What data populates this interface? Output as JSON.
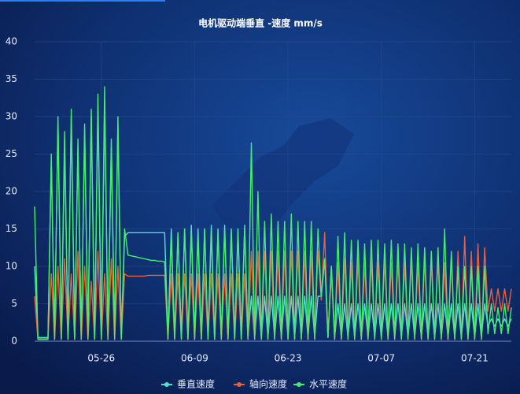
{
  "chart_data": {
    "type": "line",
    "title": "电机驱动端垂直 -速度 mm/s",
    "categories": [
      null,
      null,
      null,
      null,
      null,
      null,
      null,
      null,
      null,
      null,
      null,
      null,
      null,
      null,
      null,
      null,
      null,
      null,
      null,
      null,
      "05-26",
      null,
      null,
      null,
      null,
      null,
      null,
      null,
      null,
      null,
      null,
      null,
      null,
      null,
      null,
      null,
      null,
      null,
      null,
      null,
      null,
      null,
      null,
      null,
      null,
      null,
      null,
      null,
      "06-09",
      null,
      null,
      null,
      null,
      null,
      null,
      null,
      null,
      null,
      null,
      null,
      null,
      null,
      null,
      null,
      null,
      null,
      null,
      null,
      null,
      null,
      null,
      null,
      null,
      null,
      null,
      null,
      "06-23",
      null,
      null,
      null,
      null,
      null,
      null,
      null,
      null,
      null,
      null,
      null,
      null,
      null,
      null,
      null,
      null,
      null,
      null,
      null,
      null,
      null,
      null,
      null,
      null,
      null,
      null,
      null,
      "07-07",
      null,
      null,
      null,
      null,
      null,
      null,
      null,
      null,
      null,
      null,
      null,
      null,
      null,
      null,
      null,
      null,
      null,
      null,
      null,
      null,
      null,
      null,
      null,
      null,
      null,
      null,
      null,
      "07-21",
      null,
      null,
      null,
      null,
      null,
      null,
      null,
      null,
      null,
      null,
      null
    ],
    "series": [
      {
        "name": "垂直速度",
        "color": "#4fe3cf",
        "values": [
          10,
          0.5,
          0.5,
          0.5,
          0.5,
          24,
          0.5,
          29,
          0.5,
          26,
          0.5,
          30,
          0.5,
          26,
          0.5,
          28,
          0.5,
          30,
          0.5,
          31,
          0.5,
          32,
          0.5,
          26,
          0.5,
          29,
          0.5,
          14,
          14.5,
          14.5,
          14.5,
          14.5,
          14.5,
          14.5,
          14.5,
          14.5,
          14.5,
          14.5,
          14.5,
          14.5,
          0.5,
          15,
          0.5,
          14.5,
          0.5,
          15,
          0.5,
          15.5,
          0.5,
          15,
          0.5,
          15,
          0.5,
          15.5,
          0.5,
          15,
          0.5,
          15.5,
          0.5,
          15,
          0.5,
          15,
          0.5,
          15.5,
          0.5,
          6,
          0.5,
          6,
          0.5,
          6,
          0.5,
          6,
          0.5,
          6,
          0.5,
          6,
          0.5,
          6,
          0.5,
          6,
          0.5,
          6,
          0.5,
          6,
          0.5,
          6,
          6,
          11,
          0.5,
          10,
          0.5,
          5,
          0.5,
          5,
          0.5,
          5,
          0.5,
          5,
          0.5,
          5,
          0.5,
          5,
          0.5,
          5,
          0.5,
          5,
          0.5,
          5,
          0.5,
          5,
          0.5,
          5,
          0.5,
          5,
          0.5,
          5,
          0.5,
          5,
          0.5,
          5,
          0.5,
          5,
          0.5,
          5,
          0.5,
          5,
          0.5,
          5,
          0.5,
          5,
          0.5,
          5,
          0.5,
          5,
          0.5,
          5,
          2,
          3,
          2,
          3,
          2,
          3,
          2,
          3
        ]
      },
      {
        "name": "轴向速度",
        "color": "#e8603c",
        "values": [
          6,
          0.2,
          0.2,
          0.2,
          0.2,
          9,
          0.2,
          10,
          0.2,
          11,
          0.2,
          9,
          0.2,
          12,
          0.2,
          10,
          0.2,
          8,
          0.2,
          12,
          0.2,
          9,
          0.2,
          11,
          0.2,
          10,
          0.2,
          9,
          8.7,
          8.7,
          8.7,
          8.7,
          8.7,
          8.7,
          8.8,
          8.8,
          8.8,
          8.8,
          8.8,
          8.8,
          0.2,
          9,
          0.2,
          9,
          0.2,
          9,
          0.2,
          9,
          0.2,
          9,
          0.2,
          9,
          0.2,
          9,
          0.2,
          9,
          0.2,
          9,
          0.2,
          9,
          0.2,
          9,
          0.2,
          9,
          0.2,
          12,
          0.2,
          12,
          0.2,
          12,
          0.2,
          12,
          0.2,
          12,
          0.2,
          12,
          0.2,
          12,
          0.2,
          12,
          0.2,
          12,
          0.2,
          12,
          0.2,
          12,
          5.5,
          14.5,
          0.5,
          9,
          0.2,
          10.5,
          0.2,
          11,
          0.2,
          10.5,
          0.2,
          11,
          0.2,
          10.5,
          0.2,
          11,
          0.2,
          10.5,
          0.2,
          11,
          0.2,
          10.5,
          0.2,
          11,
          0.2,
          10.5,
          0.2,
          11,
          0.2,
          10.5,
          0.2,
          11,
          0.2,
          10.5,
          0.2,
          11,
          0.2,
          10.5,
          0.2,
          11,
          0.2,
          12,
          0.2,
          14,
          0.2,
          12,
          0.2,
          13,
          0.2,
          12.5,
          4,
          7,
          4,
          7,
          4,
          7,
          4,
          7
        ]
      },
      {
        "name": "水平速度",
        "color": "#47ee6c",
        "values": [
          18,
          0.3,
          0.3,
          0.3,
          0.3,
          25,
          0.3,
          30,
          0.3,
          28,
          0.3,
          31,
          0.3,
          27,
          0.3,
          29,
          0.3,
          31,
          0.3,
          33,
          0.3,
          34,
          0.3,
          27,
          0.3,
          30,
          0.3,
          15,
          11.5,
          11.4,
          11.3,
          11.2,
          11.1,
          11,
          10.9,
          10.8,
          10.8,
          10.7,
          10.7,
          10.6,
          0.3,
          14,
          0.3,
          14.5,
          0.3,
          15,
          0.3,
          14.5,
          0.3,
          14,
          0.3,
          15,
          0.3,
          14.5,
          0.3,
          14.5,
          0.3,
          15,
          0.3,
          14.5,
          0.3,
          14.5,
          0.3,
          15,
          0.3,
          26.5,
          0.3,
          20,
          0.3,
          16,
          0.3,
          17,
          0.3,
          16,
          0.3,
          16,
          0.3,
          17,
          0.3,
          16,
          0.3,
          16,
          0.3,
          16,
          0.3,
          15,
          6,
          11,
          0.5,
          10,
          0.3,
          14,
          0.3,
          14.5,
          0.3,
          13.5,
          0.3,
          13.5,
          0.3,
          13,
          0.3,
          13.5,
          0.3,
          13.5,
          0.3,
          13,
          0.3,
          13.5,
          0.3,
          13,
          0.3,
          13,
          0.3,
          12.5,
          0.3,
          13,
          0.3,
          12.5,
          0.3,
          12,
          0.3,
          12.5,
          0.3,
          15,
          0.3,
          12,
          0.3,
          10,
          0.3,
          10,
          0.3,
          10,
          0.3,
          10,
          0.3,
          10,
          1,
          5,
          1,
          4.5,
          1,
          5,
          1,
          4.5
        ]
      }
    ],
    "ylim": [
      0,
      40
    ],
    "yticks": [
      0,
      5,
      10,
      15,
      20,
      25,
      30,
      35,
      40
    ],
    "grid": true
  }
}
